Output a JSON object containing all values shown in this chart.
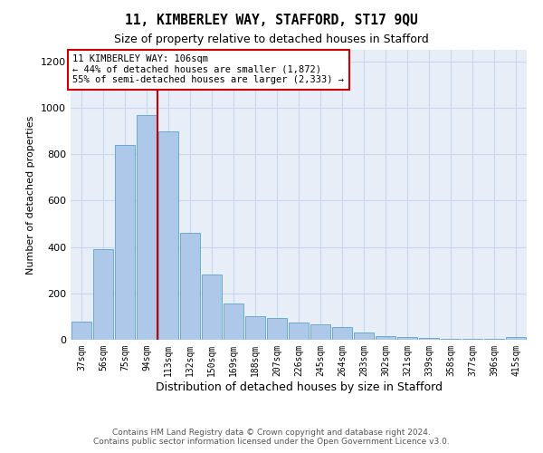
{
  "title": "11, KIMBERLEY WAY, STAFFORD, ST17 9QU",
  "subtitle": "Size of property relative to detached houses in Stafford",
  "xlabel": "Distribution of detached houses by size in Stafford",
  "ylabel": "Number of detached properties",
  "categories": [
    "37sqm",
    "56sqm",
    "75sqm",
    "94sqm",
    "113sqm",
    "132sqm",
    "150sqm",
    "169sqm",
    "188sqm",
    "207sqm",
    "226sqm",
    "245sqm",
    "264sqm",
    "283sqm",
    "302sqm",
    "321sqm",
    "339sqm",
    "358sqm",
    "377sqm",
    "396sqm",
    "415sqm"
  ],
  "values": [
    80,
    390,
    840,
    970,
    900,
    460,
    280,
    155,
    100,
    95,
    75,
    65,
    55,
    30,
    15,
    10,
    8,
    5,
    3,
    3,
    10
  ],
  "bar_color": "#adc8e8",
  "bar_edgecolor": "#6aaad4",
  "grid_color": "#c8d8ee",
  "background_color": "#e8eef8",
  "red_line_x": 3.5,
  "property_line_color": "#cc0000",
  "annotation_title": "11 KIMBERLEY WAY: 106sqm",
  "annotation_line1": "← 44% of detached houses are smaller (1,872)",
  "annotation_line2": "55% of semi-detached houses are larger (2,333) →",
  "footnote1": "Contains HM Land Registry data © Crown copyright and database right 2024.",
  "footnote2": "Contains public sector information licensed under the Open Government Licence v3.0.",
  "ylim": [
    0,
    1250
  ],
  "yticks": [
    0,
    200,
    400,
    600,
    800,
    1000,
    1200
  ]
}
